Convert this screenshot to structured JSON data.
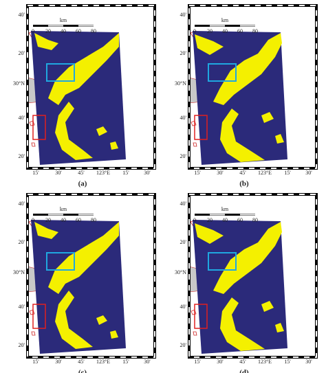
{
  "panels": [
    {
      "label": "(a)",
      "scale_labels": [
        "0",
        "20",
        "40",
        "60",
        "80"
      ],
      "scale_unit": "km",
      "lat_labels": [
        "40'",
        "20'",
        "30°N",
        "40'",
        "20'"
      ],
      "lon_labels": [
        "15'",
        "30'",
        "45'",
        "123°E",
        "15'",
        "30'"
      ]
    },
    {
      "label": "(b)",
      "scale_labels": [
        "0",
        "20",
        "40",
        "60",
        "80"
      ],
      "scale_unit": "km",
      "lat_labels": [
        "40'",
        "20'",
        "30°N",
        "40'",
        "20'"
      ],
      "lon_labels": [
        "15'",
        "30'",
        "45'",
        "123°E",
        "15'",
        "30'"
      ]
    },
    {
      "label": "(c)",
      "scale_labels": [
        "0",
        "20",
        "40",
        "60",
        "80"
      ],
      "scale_unit": "km",
      "lat_labels": [
        "40'",
        "20'",
        "30°N",
        "40'",
        "20'"
      ],
      "lon_labels": [
        "15'",
        "30'",
        "45'",
        "123°E",
        "15'",
        "30'"
      ]
    },
    {
      "label": "(d)",
      "scale_labels": [
        "0",
        "20",
        "40",
        "60",
        "80"
      ],
      "scale_unit": "km",
      "lat_labels": [
        "40'",
        "20'",
        "30°N",
        "40'",
        "20'"
      ],
      "lon_labels": [
        "15'",
        "30'",
        "45'",
        "123°E",
        "15'",
        "30'"
      ]
    }
  ]
}
